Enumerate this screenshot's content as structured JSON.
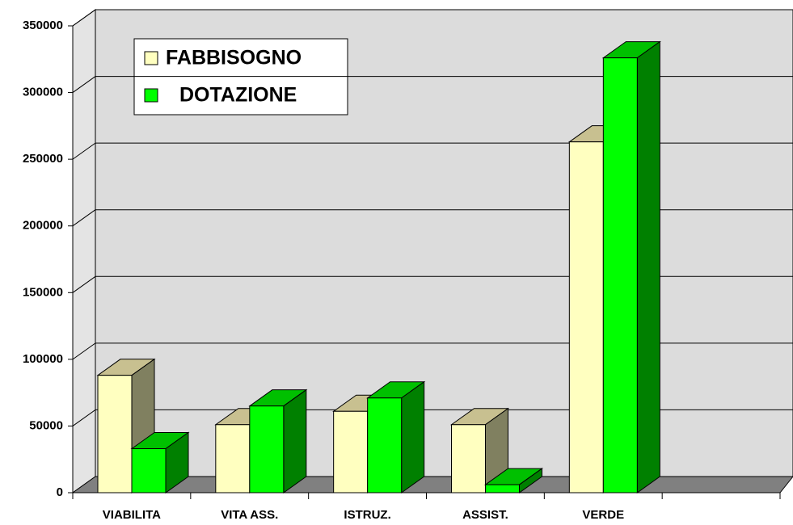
{
  "chart_data": {
    "type": "bar3d",
    "categories": [
      "VIABILITA",
      "VITA ASS.",
      "ISTRUZ.",
      "ASSIST.",
      "VERDE",
      null
    ],
    "series": [
      {
        "name": "FABBISOGNO",
        "color": "#ffffc0",
        "values": [
          88000,
          51000,
          61000,
          51000,
          263000,
          null
        ]
      },
      {
        "name": "DOTAZIONE",
        "color": "#00ff00",
        "values": [
          33000,
          65000,
          71000,
          6000,
          326000,
          null
        ]
      }
    ],
    "ylim": [
      0,
      350000
    ],
    "yticks": [
      0,
      50000,
      100000,
      150000,
      200000,
      250000,
      300000,
      350000
    ],
    "grid": true,
    "legend": "top-left"
  }
}
